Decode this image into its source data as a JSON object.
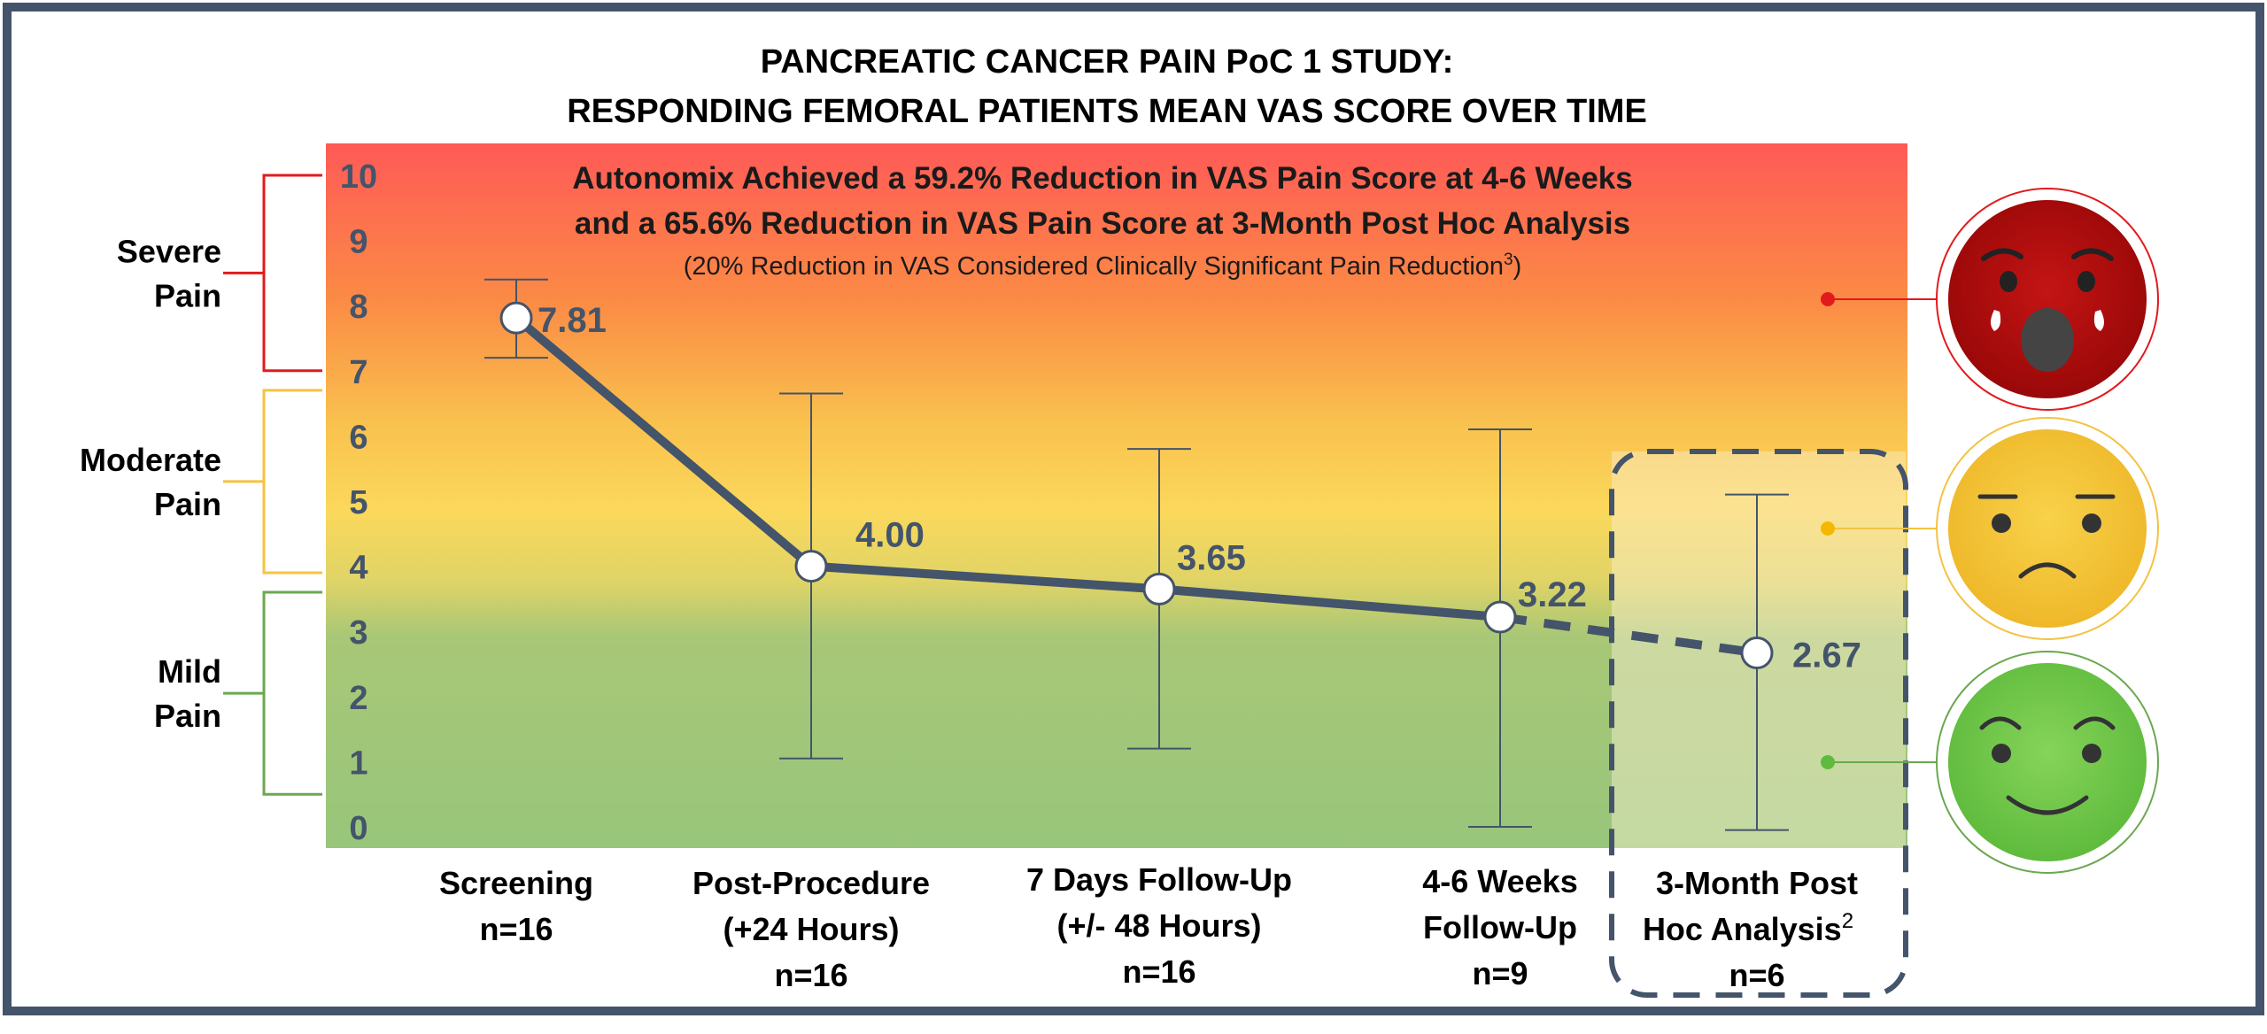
{
  "chart_data": {
    "type": "line",
    "title_line1": "PANCREATIC CANCER PAIN PoC 1 STUDY:",
    "title_line2": "RESPONDING FEMORAL PATIENTS MEAN VAS SCORE OVER TIME",
    "headline_line1": "Autonomix Achieved a 59.2% Reduction in VAS Pain Score at 4-6 Weeks",
    "headline_line2": "and a 65.6% Reduction in VAS Pain Score at 3-Month Post Hoc Analysis",
    "note": "(20% Reduction in VAS Considered Clinically Significant Pain Reduction",
    "note_sup": "3",
    "note_close": ")",
    "ylim": [
      0,
      10
    ],
    "yticks": [
      "0",
      "1",
      "2",
      "3",
      "4",
      "5",
      "6",
      "7",
      "8",
      "9",
      "10"
    ],
    "categories": [
      {
        "lines": [
          "Screening",
          "n=16"
        ],
        "sup": ""
      },
      {
        "lines": [
          "Post-Procedure",
          "(+24 Hours)",
          "n=16"
        ],
        "sup": ""
      },
      {
        "lines": [
          "7 Days Follow-Up",
          "(+/- 48 Hours)",
          "n=16"
        ],
        "sup": ""
      },
      {
        "lines": [
          "4-6 Weeks",
          "Follow-Up",
          "n=9"
        ],
        "sup": ""
      },
      {
        "lines": [
          "3-Month Post",
          "Hoc Analysis",
          "n=6"
        ],
        "sup": "2"
      }
    ],
    "values": [
      7.81,
      4.0,
      3.65,
      3.22,
      2.67
    ],
    "value_labels": [
      "7.81",
      "4.00",
      "3.65",
      "3.22",
      "2.67"
    ],
    "error_low": [
      7.2,
      1.05,
      1.2,
      0.0,
      -0.05
    ],
    "error_high": [
      8.4,
      6.65,
      5.8,
      6.1,
      5.1
    ],
    "segment_styles": [
      "solid",
      "solid",
      "solid",
      "dashed"
    ],
    "pain_zones": [
      {
        "lines": [
          "Severe",
          "Pain"
        ],
        "range": [
          7,
          10
        ],
        "color": "#e31a1c"
      },
      {
        "lines": [
          "Moderate",
          "Pain"
        ],
        "range": [
          3.9,
          6.7
        ],
        "color": "#f5c242"
      },
      {
        "lines": [
          "Mild",
          "Pain"
        ],
        "range": [
          0.5,
          3.6
        ],
        "color": "#6aa84f"
      }
    ],
    "face_icons": [
      "severe-pain-face",
      "moderate-pain-face",
      "mild-pain-face"
    ],
    "line_color": "#44546a",
    "label_color": "#44546a"
  }
}
